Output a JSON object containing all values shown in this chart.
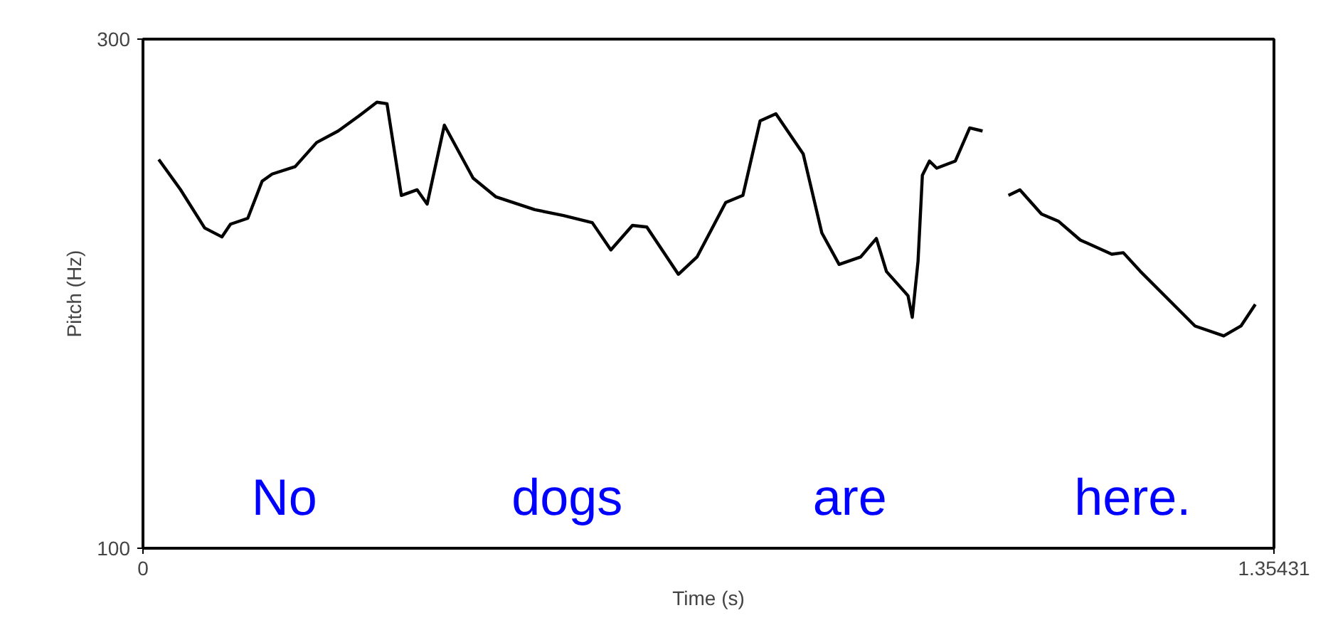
{
  "chart_data": {
    "type": "line",
    "xlabel": "Time (s)",
    "ylabel": "Pitch (Hz)",
    "x": [
      0.0189,
      0.0447,
      0.0739,
      0.0945,
      0.1048,
      0.1255,
      0.1427,
      0.1547,
      0.1822,
      0.208,
      0.2337,
      0.2578,
      0.2801,
      0.2922,
      0.3094,
      0.3283,
      0.3403,
      0.3609,
      0.3953,
      0.4228,
      0.4692,
      0.5036,
      0.538,
      0.5603,
      0.5861,
      0.6033,
      0.6411,
      0.6634,
      0.6978,
      0.7184,
      0.739,
      0.7579,
      0.7906,
      0.8129,
      0.8336,
      0.8594,
      0.8782,
      0.8903,
      0.9161,
      0.9212,
      0.9281,
      0.9333,
      0.9418,
      0.9504,
      0.9728,
      0.99,
      1.0054,
      1.02,
      1.0364,
      1.0501,
      1.0759,
      1.0965,
      1.1223,
      1.1601,
      1.1739,
      1.1945,
      1.2598,
      1.2942,
      1.3148,
      1.332
    ],
    "series": [
      {
        "color": "#000000",
        "values": [
          252.7,
          241.0,
          225.8,
          222.3,
          227.3,
          229.6,
          244.2,
          247.0,
          249.9,
          259.4,
          263.9,
          269.6,
          275.2,
          274.6,
          238.6,
          240.8,
          235.2,
          266.2,
          245.4,
          238.0,
          233.0,
          230.7,
          227.9,
          217.2,
          226.8,
          226.2,
          207.6,
          214.4,
          235.8,
          238.6,
          267.9,
          270.7,
          254.9,
          223.9,
          211.5,
          214.4,
          221.7,
          208.7,
          199.2,
          190.7,
          212.7,
          246.5,
          252.1,
          249.3,
          252.1,
          265.1,
          263.9,
          null,
          238.6,
          240.8,
          231.3,
          228.4,
          221.1,
          215.5,
          216.1,
          208.7,
          187.3,
          183.4,
          187.3,
          195.8
        ]
      }
    ],
    "xlim": [
      0,
      1.35431
    ],
    "xticks": [
      0,
      1.35431
    ],
    "ylim": [
      100,
      300
    ],
    "yticks": [
      100,
      300
    ],
    "marker": "none",
    "line_style": "solid",
    "annotations": [
      "No",
      "dogs",
      "are",
      "here."
    ]
  }
}
